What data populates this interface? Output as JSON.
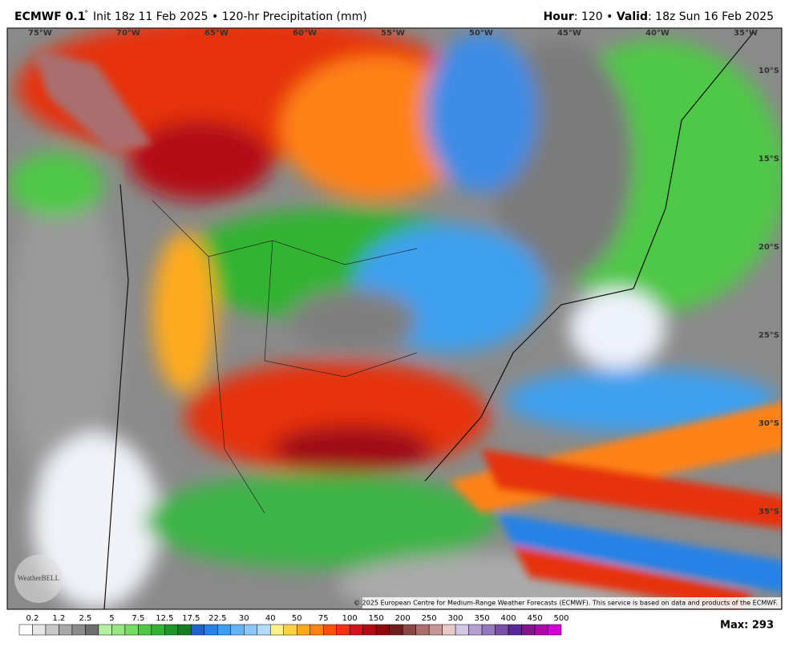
{
  "header": {
    "model": "ECMWF 0.1",
    "degree": "°",
    "init": "Init 18z 11 Feb 2025 • 120-hr Precipitation (mm)",
    "hour_label": "Hour",
    "hour": ": 120 • ",
    "valid_label": "Valid",
    "valid": ": 18z Sun 16 Feb 2025"
  },
  "map": {
    "longitudes": [
      "75°W",
      "70°W",
      "65°W",
      "60°W",
      "55°W",
      "50°W",
      "45°W",
      "40°W",
      "35°W"
    ],
    "latitudes": [
      "10°S",
      "15°S",
      "20°S",
      "25°S",
      "30°S",
      "35°S"
    ],
    "copyright": "© 2025 European Centre for Medium-Range Weather Forecasts (ECMWF). This service is based on data and products of the ECMWF.",
    "logo": "WeatherBELL"
  },
  "colorbar": {
    "labels": [
      "0.2",
      "1.2",
      "2.5",
      "5",
      "7.5",
      "12.5",
      "17.5",
      "22.5",
      "30",
      "40",
      "50",
      "75",
      "100",
      "150",
      "200",
      "250",
      "300",
      "350",
      "400",
      "450",
      "500"
    ],
    "colors": [
      "#ffffff",
      "#e6e6e6",
      "#c8c8c8",
      "#a8a8a8",
      "#8c8c8c",
      "#6e6e6e",
      "#b4f0a0",
      "#96e682",
      "#78dc64",
      "#50c846",
      "#32b432",
      "#1e9628",
      "#147d23",
      "#1e64c8",
      "#2882e6",
      "#3ca0f0",
      "#64b4f5",
      "#8cc8fa",
      "#b4dcfa",
      "#fff08c",
      "#ffd246",
      "#ffaa1e",
      "#ff8214",
      "#ff500a",
      "#f03214",
      "#d2141e",
      "#b40a14",
      "#8c0a0a",
      "#6e1e1e",
      "#8c4646",
      "#aa6e6e",
      "#c89696",
      "#e6c8c8",
      "#d2c8e6",
      "#b4a0d2",
      "#9678be",
      "#7850aa",
      "#5a2896",
      "#82148c",
      "#aa0aaa",
      "#d200d2"
    ],
    "max": "Max: 293"
  }
}
